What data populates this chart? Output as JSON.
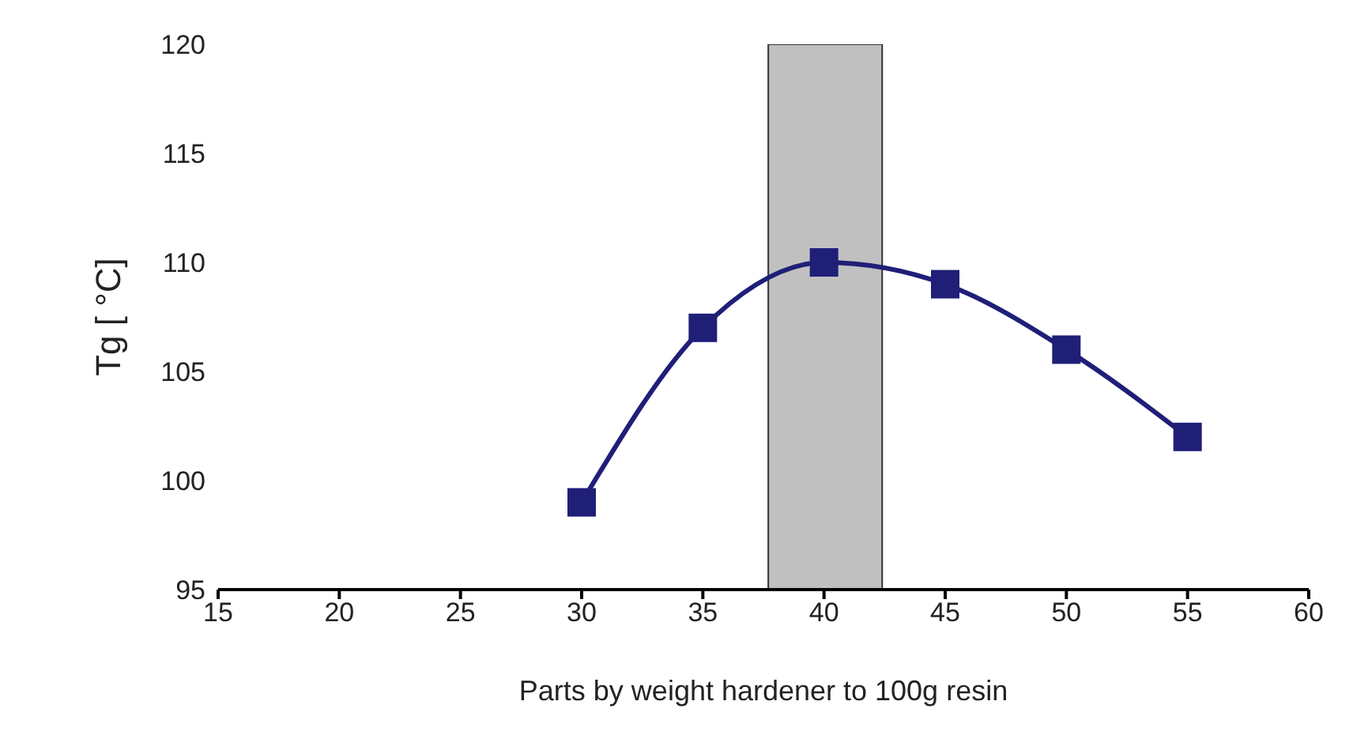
{
  "chart_data": {
    "type": "line",
    "xlabel": "Parts by weight hardener to 100g resin",
    "ylabel": "Tg [ °C]",
    "x": [
      30,
      35,
      40,
      45,
      50,
      55
    ],
    "series": [
      {
        "color": "#1f1f78",
        "values": [
          99,
          107,
          110,
          109,
          106,
          102
        ]
      }
    ],
    "xlim": [
      15,
      60
    ],
    "xticks": [
      15,
      20,
      25,
      30,
      35,
      40,
      45,
      50,
      55,
      60
    ],
    "ylim": [
      95,
      120
    ],
    "yticks": [
      95,
      100,
      105,
      110,
      115,
      120
    ],
    "bands": [
      {
        "axis": "x",
        "from": 37.7,
        "to": 42.4,
        "color": "#c0c0c0"
      }
    ],
    "grid": false,
    "legend": false,
    "marker": "square",
    "line_style": "solid"
  }
}
